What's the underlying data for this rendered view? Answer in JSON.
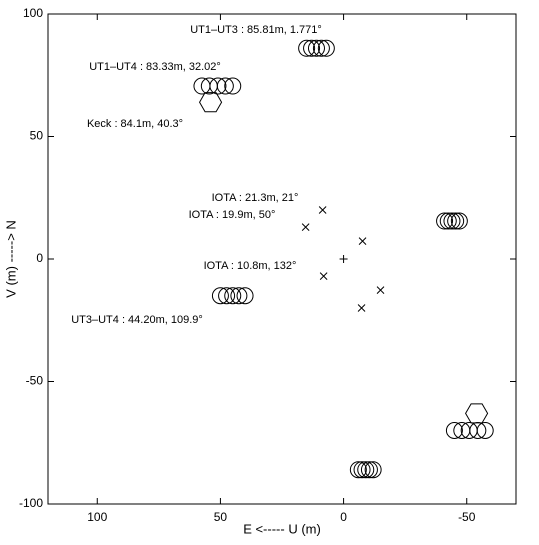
{
  "chart_data": {
    "type": "scatter",
    "xlabel": "E <----- U (m)",
    "ylabel": "V (m) -----> N",
    "xlim": [
      120,
      -70
    ],
    "ylim": [
      -100,
      100
    ],
    "xticks": [
      100,
      50,
      0,
      -50
    ],
    "yticks": [
      -100,
      -50,
      0,
      50,
      100
    ],
    "annotations": [
      "UT1–UT3 : 85.81m, 1.771°",
      "UT1–UT4 : 83.33m, 32.02°",
      "Keck : 84.1m, 40.3°",
      "IOTA : 21.3m, 21°",
      "IOTA : 19.9m, 50°",
      "IOTA : 10.8m, 132°",
      "UT3–UT4 : 44.20m, 109.9°"
    ],
    "series": [
      {
        "marker": "circle",
        "color": "#000000",
        "x": [
          15,
          13,
          11,
          9,
          7,
          -6,
          -7.5,
          -9,
          -10.5,
          -12,
          57.5,
          54.5,
          51,
          48,
          45,
          -45,
          -48,
          -51,
          -54.5,
          -57.5,
          50,
          47.5,
          45,
          42.5,
          40,
          -41,
          -42.5,
          -44,
          -45.5,
          -47
        ],
        "y": [
          86,
          86,
          86,
          86,
          86,
          -86,
          -86,
          -86,
          -86,
          -86,
          70.6,
          70.6,
          70.6,
          70.6,
          70.6,
          -70,
          -70,
          -70,
          -70,
          -70,
          -15,
          -15,
          -15,
          -15,
          -15,
          15.5,
          15.5,
          15.5,
          15.5,
          15.5
        ]
      },
      {
        "marker": "hexagon",
        "color": "#000000",
        "x": [
          54,
          -54
        ],
        "y": [
          64,
          -63
        ]
      },
      {
        "marker": "x",
        "color": "#000000",
        "x": [
          8.5,
          15.4,
          -7.7,
          -15,
          8.1,
          -7.3
        ],
        "y": [
          20,
          13,
          7.3,
          -12.7,
          -7,
          -20
        ]
      },
      {
        "marker": "plus",
        "color": "#000000",
        "x": [
          0
        ],
        "y": [
          0
        ]
      }
    ]
  }
}
